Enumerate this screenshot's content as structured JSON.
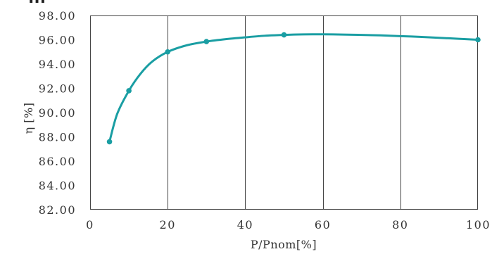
{
  "chart_data": {
    "type": "line",
    "title": "",
    "xlabel": "P/Pnom[%]",
    "ylabel": "η [%]",
    "xlim": [
      0,
      100
    ],
    "ylim": [
      82,
      98
    ],
    "x_ticks": [
      0,
      20,
      40,
      60,
      80,
      100
    ],
    "x_tick_labels": [
      "0",
      "20",
      "40",
      "60",
      "80",
      "100"
    ],
    "y_ticks": [
      82,
      84,
      86,
      88,
      90,
      92,
      94,
      96,
      98
    ],
    "y_tick_labels": [
      "82.00",
      "84.00",
      "86.00",
      "88.00",
      "90.00",
      "92.00",
      "94.00",
      "96.00",
      "98.00"
    ],
    "grid": "vertical",
    "legend": "none",
    "series": [
      {
        "color": "#1a9ea3",
        "points": [
          {
            "x": 5,
            "y": 87.6
          },
          {
            "x": 10,
            "y": 91.8
          },
          {
            "x": 20,
            "y": 95.0
          },
          {
            "x": 30,
            "y": 95.85
          },
          {
            "x": 50,
            "y": 96.4
          },
          {
            "x": 100,
            "y": 96.0
          }
        ],
        "curve": [
          {
            "x": 5,
            "y": 87.6
          },
          {
            "x": 7,
            "y": 89.9
          },
          {
            "x": 10,
            "y": 91.8
          },
          {
            "x": 13,
            "y": 93.2
          },
          {
            "x": 16,
            "y": 94.2
          },
          {
            "x": 20,
            "y": 95.0
          },
          {
            "x": 25,
            "y": 95.55
          },
          {
            "x": 30,
            "y": 95.85
          },
          {
            "x": 35,
            "y": 96.05
          },
          {
            "x": 40,
            "y": 96.2
          },
          {
            "x": 45,
            "y": 96.33
          },
          {
            "x": 50,
            "y": 96.4
          },
          {
            "x": 55,
            "y": 96.44
          },
          {
            "x": 60,
            "y": 96.45
          },
          {
            "x": 65,
            "y": 96.43
          },
          {
            "x": 70,
            "y": 96.4
          },
          {
            "x": 75,
            "y": 96.36
          },
          {
            "x": 80,
            "y": 96.3
          },
          {
            "x": 85,
            "y": 96.24
          },
          {
            "x": 90,
            "y": 96.16
          },
          {
            "x": 95,
            "y": 96.08
          },
          {
            "x": 100,
            "y": 96.0
          }
        ]
      }
    ]
  },
  "header_fragment": "...",
  "colors": {
    "series": "#1a9ea3",
    "grid": "#444444",
    "text": "#333333"
  }
}
